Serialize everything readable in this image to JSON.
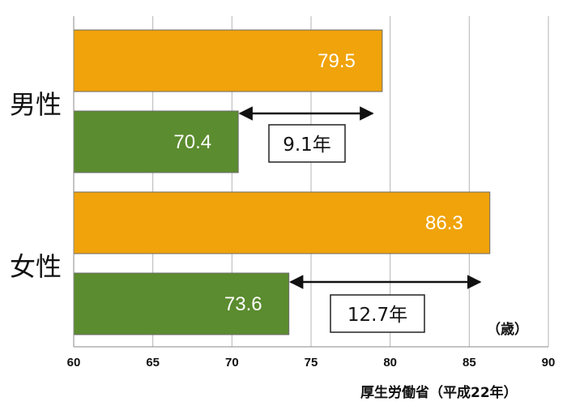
{
  "chart_data": {
    "type": "bar",
    "orientation": "horizontal",
    "categories": [
      "男性",
      "女性"
    ],
    "series": [
      {
        "values": [
          79.5,
          86.3
        ],
        "color": "#F0A30A"
      },
      {
        "values": [
          70.4,
          73.6
        ],
        "color": "#5B8C2F"
      }
    ],
    "xlim": [
      60,
      90
    ],
    "xticks": [
      60,
      65,
      70,
      75,
      80,
      85,
      90
    ],
    "grid": true,
    "unit_label": "（歳）",
    "source": "厚生労働省（平成22年）",
    "annotations": [
      "9.1年",
      "12.7年"
    ]
  }
}
